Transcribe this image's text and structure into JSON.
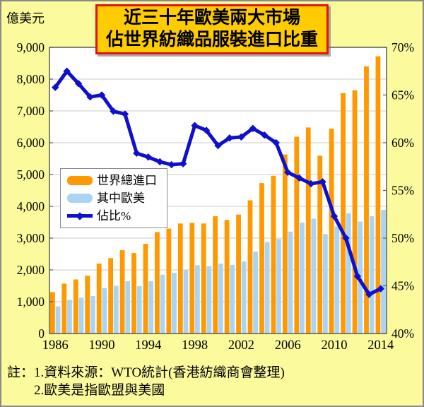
{
  "page": {
    "background": "#FBFB9D",
    "border_color": "#8a8a8a"
  },
  "title": {
    "line1": "近三十年歐美兩大市場",
    "line2": "佔世界紡織品服裝進口比重",
    "bg": "#FFCC00",
    "border_color": "#E31212"
  },
  "left_axis_unit": "億美元",
  "notes": {
    "prefix": "註：",
    "line1": "1.資料來源：WTO統計(香港紡織商會整理)",
    "line2": "2.歐美是指歐盟與美國"
  },
  "chart_data": {
    "type": "bar",
    "title": "近三十年歐美兩大市場佔世界紡織品服裝進口比重",
    "categories": [
      "1986",
      "1987",
      "1988",
      "1989",
      "1990",
      "1991",
      "1992",
      "1993",
      "1994",
      "1995",
      "1996",
      "1997",
      "1998",
      "1999",
      "2000",
      "2001",
      "2002",
      "2003",
      "2004",
      "2005",
      "2006",
      "2007",
      "2008",
      "2009",
      "2010",
      "2011",
      "2012",
      "2013",
      "2014"
    ],
    "x_tick_labels": [
      "1986",
      "1990",
      "1994",
      "1998",
      "2002",
      "2006",
      "2010",
      "2014"
    ],
    "grid": "horizontal",
    "legend_position": "inside-left",
    "series": [
      {
        "name": "世界總進口",
        "type": "bar",
        "axis": "left",
        "color": "#FF9900",
        "values": [
          1300,
          1570,
          1700,
          1820,
          2200,
          2370,
          2620,
          2530,
          2820,
          3190,
          3300,
          3460,
          3480,
          3460,
          3690,
          3570,
          3740,
          4190,
          4730,
          4960,
          5630,
          6190,
          6480,
          5590,
          6440,
          7560,
          7650,
          8400,
          8720
        ]
      },
      {
        "name": "其中歐美",
        "type": "bar",
        "axis": "left",
        "color": "#AAD4F5",
        "values": [
          855,
          1060,
          1125,
          1180,
          1430,
          1500,
          1650,
          1490,
          1650,
          1850,
          1905,
          2000,
          2150,
          2120,
          2200,
          2160,
          2265,
          2575,
          2875,
          2975,
          3205,
          3485,
          3610,
          3125,
          3370,
          3780,
          3520,
          3690,
          3890
        ]
      },
      {
        "name": "佔比%",
        "type": "line",
        "axis": "right",
        "color": "#0F0FCC",
        "values": [
          65.8,
          67.5,
          66.2,
          64.8,
          65.0,
          63.3,
          63.0,
          58.9,
          58.5,
          58.0,
          57.7,
          57.8,
          61.8,
          61.3,
          59.7,
          60.5,
          60.6,
          61.5,
          60.8,
          60.0,
          56.9,
          56.3,
          55.7,
          55.9,
          52.3,
          50.0,
          46.0,
          44.1,
          44.7
        ]
      }
    ],
    "left_axis": {
      "label": "億美元",
      "min": 0,
      "max": 9000,
      "ticks": [
        {
          "label": "0",
          "value": 0
        },
        {
          "label": "1,000",
          "value": 1000
        },
        {
          "label": "2,000",
          "value": 2000
        },
        {
          "label": "3,000",
          "value": 3000
        },
        {
          "label": "4,000",
          "value": 4000
        },
        {
          "label": "5,000",
          "value": 5000
        },
        {
          "label": "6,000",
          "value": 6000
        },
        {
          "label": "7,000",
          "value": 7000
        },
        {
          "label": "8,000",
          "value": 8000
        },
        {
          "label": "9,000",
          "value": 9000
        }
      ]
    },
    "right_axis": {
      "unit": "%",
      "min": 40,
      "max": 70,
      "ticks": [
        {
          "label": "40%",
          "value": 40
        },
        {
          "label": "45%",
          "value": 45
        },
        {
          "label": "50%",
          "value": 50
        },
        {
          "label": "55%",
          "value": 55
        },
        {
          "label": "60%",
          "value": 60
        },
        {
          "label": "65%",
          "value": 65
        },
        {
          "label": "70%",
          "value": 70
        }
      ]
    }
  }
}
